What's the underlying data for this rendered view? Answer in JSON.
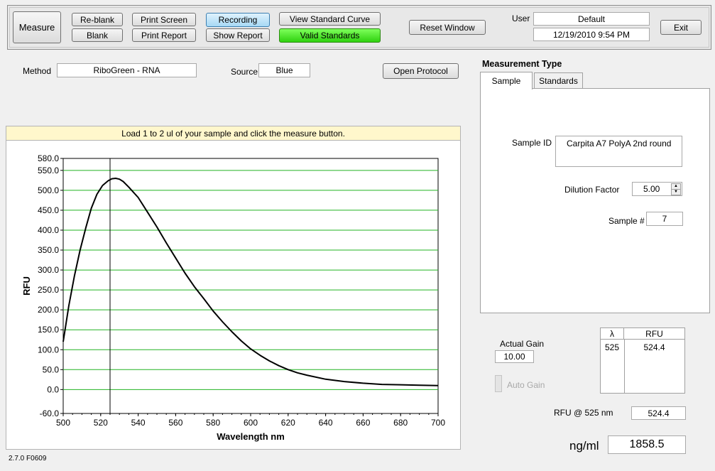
{
  "toolbar": {
    "measure": "Measure",
    "reblank": "Re-blank",
    "blank": "Blank",
    "print_screen": "Print Screen",
    "print_report": "Print Report",
    "recording": "Recording",
    "show_report": "Show Report",
    "view_standard_curve": "View Standard Curve",
    "valid_standards": "Valid Standards",
    "reset_window": "Reset Window",
    "user_label": "User",
    "user_value": "Default",
    "datetime": "12/19/2010  9:54 PM",
    "exit": "Exit"
  },
  "method": {
    "label": "Method",
    "value": "RiboGreen - RNA",
    "source_label": "Source",
    "source_value": "Blue",
    "open_protocol": "Open Protocol"
  },
  "chart_banner": "Load 1 to 2 ul of your sample and click the measure button.",
  "chart_data": {
    "type": "line",
    "xlabel": "Wavelength  nm",
    "ylabel": "RFU",
    "xlim": [
      500,
      700
    ],
    "ylim": [
      -60,
      580
    ],
    "x_ticks": [
      "500",
      "520",
      "540",
      "560",
      "580",
      "600",
      "620",
      "640",
      "660",
      "680",
      "700"
    ],
    "y_ticks": [
      "580.0",
      "550.0",
      "500.0",
      "450.0",
      "400.0",
      "350.0",
      "300.0",
      "250.0",
      "200.0",
      "150.0",
      "100.0",
      "50.0",
      "0.0",
      "-60.0"
    ],
    "grid": true,
    "cursor_x": 525,
    "series": [
      {
        "x": [
          500,
          503,
          506,
          509,
          512,
          515,
          518,
          521,
          524,
          526,
          528,
          530,
          532,
          535,
          540,
          545,
          550,
          555,
          560,
          565,
          570,
          575,
          580,
          585,
          590,
          595,
          600,
          605,
          610,
          615,
          620,
          625,
          630,
          640,
          650,
          660,
          670,
          680,
          690,
          700
        ],
        "y": [
          120,
          210,
          285,
          350,
          405,
          455,
          490,
          512,
          524,
          529,
          530,
          528,
          522,
          508,
          482,
          445,
          408,
          368,
          330,
          292,
          258,
          228,
          197,
          170,
          145,
          122,
          102,
          86,
          72,
          60,
          50,
          42,
          36,
          26,
          20,
          16,
          13,
          12,
          11,
          10
        ]
      }
    ]
  },
  "measurement_type": {
    "title": "Measurement Type",
    "tab_sample": "Sample",
    "tab_standards": "Standards",
    "sample_id_label": "Sample ID",
    "sample_id_value": "Carpita A7 PolyA 2nd round",
    "dilution_label": "Dilution Factor",
    "dilution_value": "5.00",
    "sample_num_label": "Sample #",
    "sample_num_value": "7"
  },
  "gain": {
    "actual_label": "Actual Gain",
    "actual_value": "10.00",
    "auto_label": "Auto Gain"
  },
  "rfu_table": {
    "col_lambda": "λ",
    "col_rfu": "RFU",
    "rows": [
      {
        "lambda": "525",
        "rfu": "524.4"
      }
    ]
  },
  "results": {
    "rfu_label": "RFU @ 525 nm",
    "rfu_value": "524.4",
    "conc_label": "ng/ml",
    "conc_value": "1858.5"
  },
  "version": "2.7.0 F0609"
}
